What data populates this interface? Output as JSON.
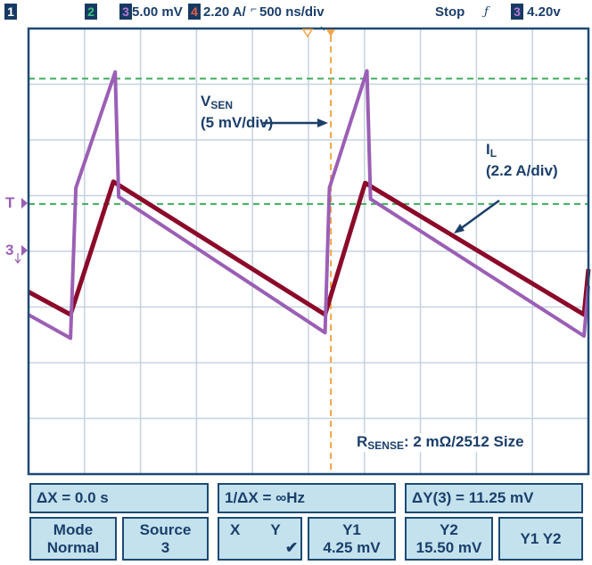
{
  "header": {
    "ch1": "1",
    "ch2": "2",
    "ch3": "3",
    "ch3_scale": "5.00 mV",
    "ch4": "4",
    "ch4_scale": "2.20 A/",
    "timebase": "500 ns/div",
    "status": "Stop",
    "trigger_slope_icon": "ƒ",
    "trigger_source": "3",
    "trigger_level": "4.20v"
  },
  "markers": {
    "trigger": "T",
    "ch3_ground": "3"
  },
  "colors": {
    "vsen": "#9b5fb5",
    "il": "#8b0a2a",
    "cursor": "#3fae5f",
    "time_cursor": "#f3a447",
    "grid": "#c5d3e0",
    "frame": "#1d4a73",
    "panel": "#c3e2ee"
  },
  "annotations": {
    "vsen_label": "V",
    "vsen_sub": "SEN",
    "vsen_scale": "(5 mV/div)",
    "il_label": "I",
    "il_sub": "L",
    "il_scale": "(2.2 A/div)",
    "rsense_label": "R",
    "rsense_sub": "SENSE",
    "rsense_value": ": 2 mΩ/2512 Size"
  },
  "chart_data": {
    "type": "line",
    "x_unit": "ns",
    "xlim": [
      0,
      5000
    ],
    "x_divisions": 10,
    "y_divisions": 8,
    "grid": true,
    "series": [
      {
        "channel": "3",
        "unit": "mV",
        "per_div": 5,
        "color": "#9b5fb5",
        "points": [
          [
            0,
            -5.7
          ],
          [
            375,
            -7.8
          ],
          [
            423,
            5.7
          ],
          [
            774,
            16.1
          ],
          [
            805,
            4.9
          ],
          [
            2648,
            -7.3
          ],
          [
            2687,
            5.7
          ],
          [
            3022,
            16.2
          ],
          [
            3054,
            4.7
          ],
          [
            4960,
            -7.6
          ],
          [
            5000,
            -3.1
          ]
        ]
      },
      {
        "channel": "4",
        "unit": "A",
        "per_div": 2.2,
        "color": "#8b0a2a",
        "points": [
          [
            0,
            -1.6
          ],
          [
            375,
            -2.5
          ],
          [
            758,
            2.75
          ],
          [
            2648,
            -2.5
          ],
          [
            3006,
            2.7
          ],
          [
            4960,
            -2.5
          ],
          [
            5000,
            -0.7
          ]
        ]
      }
    ],
    "cursors": {
      "y1_mV": 4.25,
      "y2_mV": 15.5,
      "time_cursor_ns": 2700
    }
  },
  "readouts": {
    "delta_x": "ΔX = 0.0 s",
    "inv_delta_x": "1/ΔX = ∞Hz",
    "delta_y": "ΔY(3) = 11.25 mV",
    "mode_label": "Mode",
    "mode_value": "Normal",
    "source_label": "Source",
    "source_value": "3",
    "x_label": "X",
    "y_label": "Y",
    "check": "✔",
    "y1_label": "Y1",
    "y1_value": "4.25 mV",
    "y2_label": "Y2",
    "y2_value": "15.50 mV",
    "y1y2_label": "Y1 Y2"
  }
}
